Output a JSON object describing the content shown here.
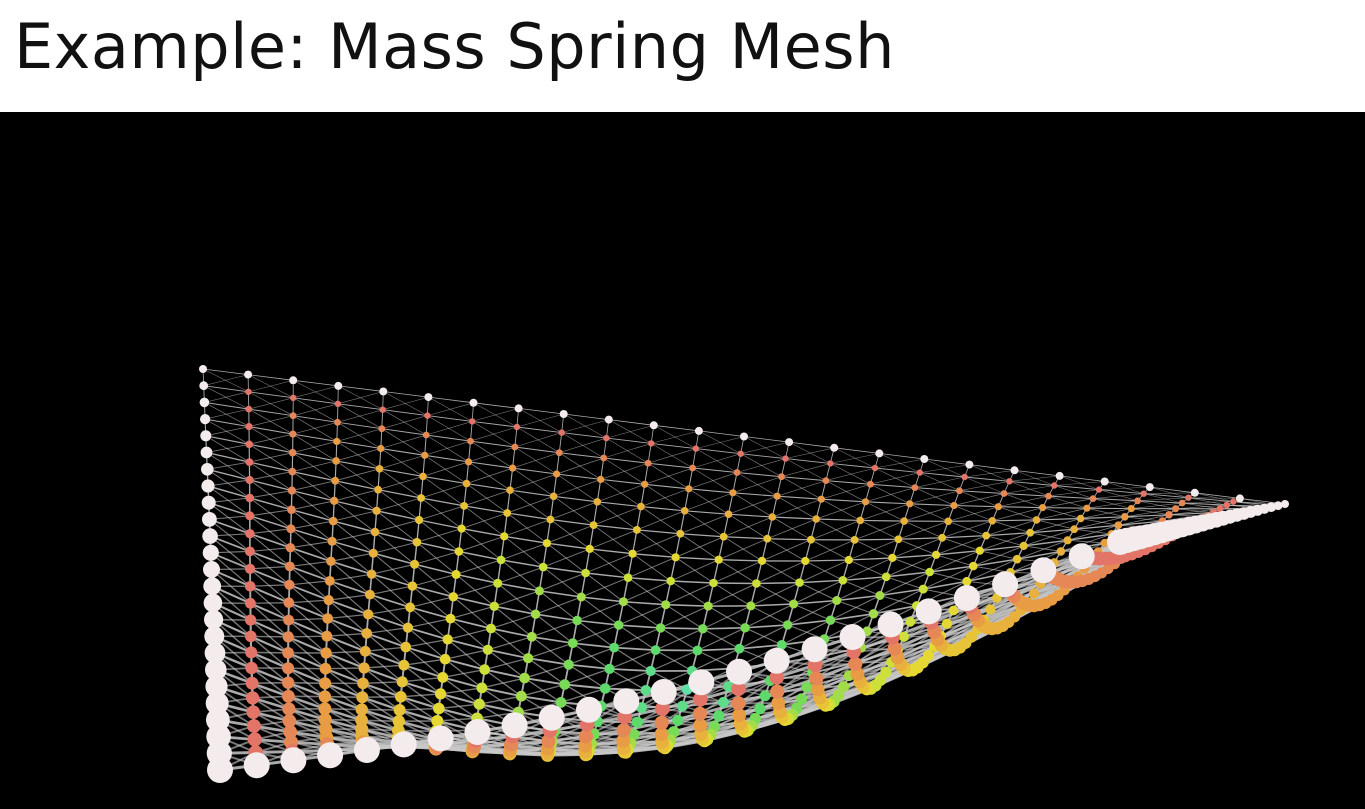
{
  "slide": {
    "title": "Example: Mass Spring Mesh"
  },
  "simulation": {
    "background_color": "#000000",
    "spring_color": "#c8c8c8",
    "boundary_node_color": "#f4ecec",
    "node_color_scale": [
      "#f2f0f0",
      "#e0607a",
      "#e8a040",
      "#e6e030",
      "#5ed860",
      "#60e0c0"
    ]
  }
}
